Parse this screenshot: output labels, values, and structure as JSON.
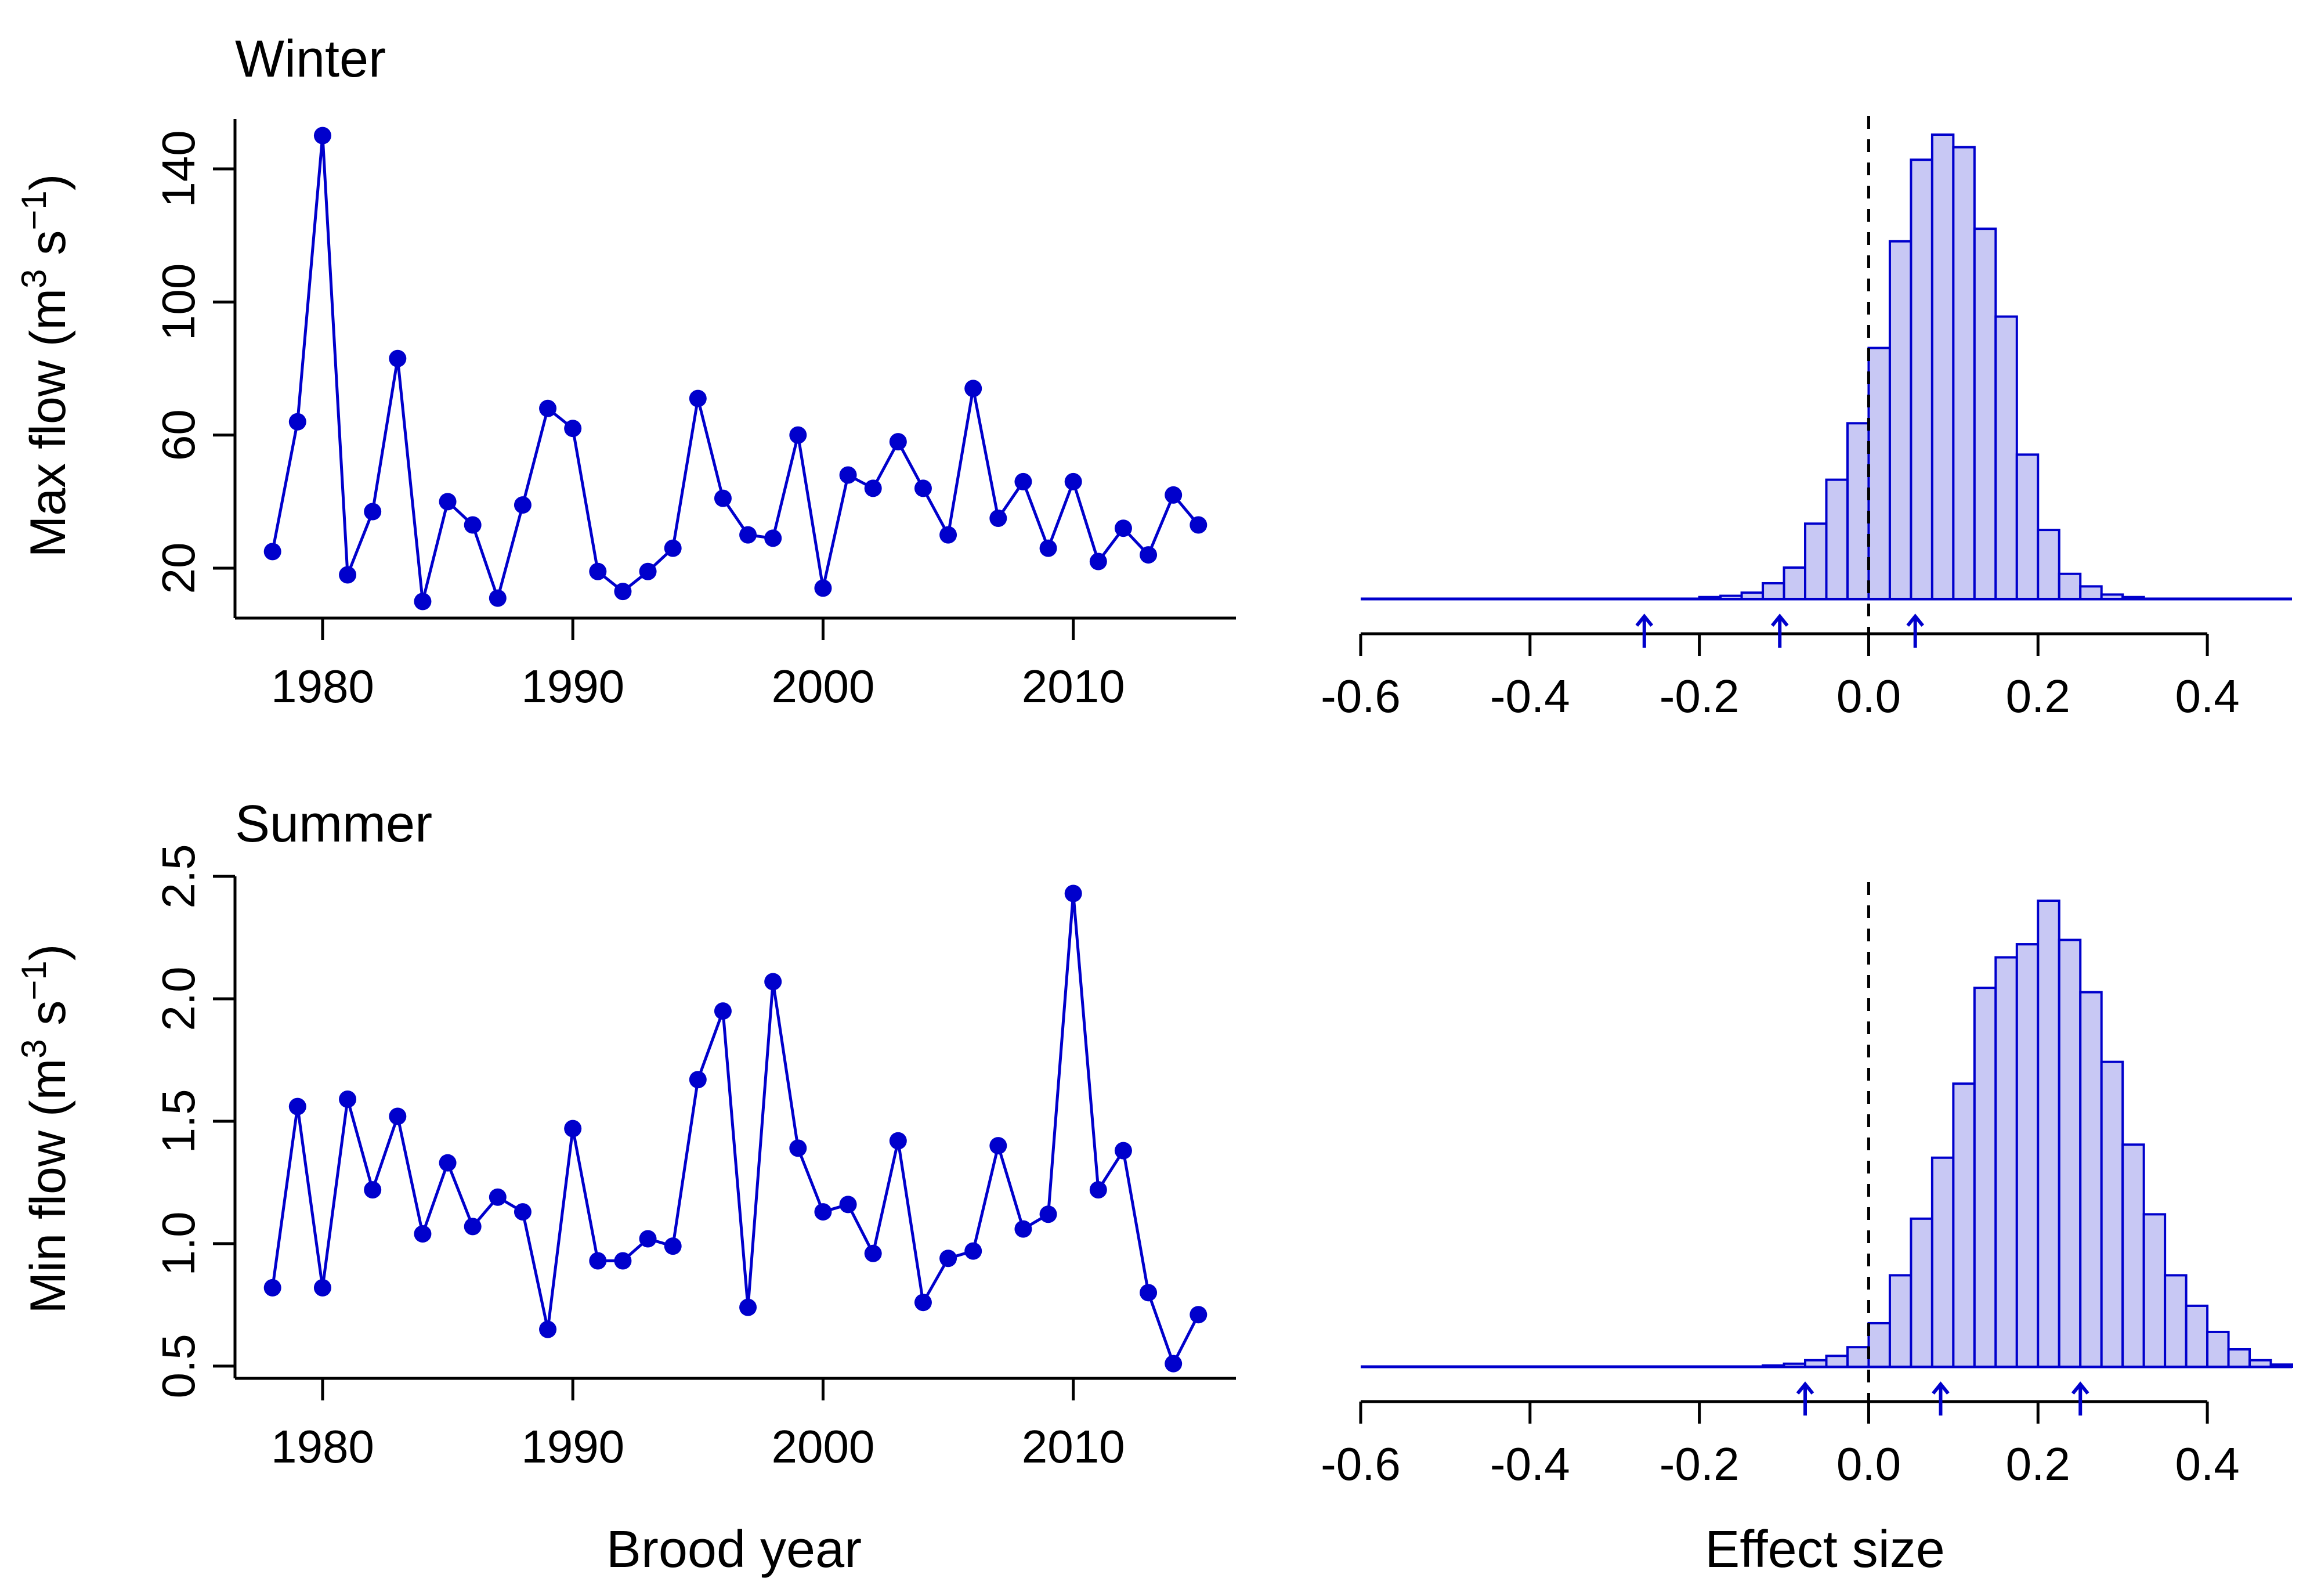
{
  "colors": {
    "series": "#0000cc",
    "bar_fill": "#c8c8f4",
    "axis": "#000000",
    "ref_line": "#000000"
  },
  "labels": {
    "winter_title": "Winter",
    "summer_title": "Summer",
    "max_flow_ylabel": "Max flow (m",
    "min_flow_ylabel": "Min flow (m",
    "unit_sup3": "3",
    "unit_s": " s",
    "unit_sup_minus1": "−1",
    "unit_close": ")",
    "brood_year_xlabel": "Brood year",
    "effect_size_xlabel": "Effect size"
  },
  "chart_data": [
    {
      "type": "line",
      "title": "Winter",
      "xlabel": "",
      "ylabel": "Max flow (m3 s−1)",
      "x": [
        1978,
        1979,
        1980,
        1981,
        1982,
        1983,
        1984,
        1985,
        1986,
        1987,
        1988,
        1989,
        1990,
        1991,
        1992,
        1993,
        1994,
        1995,
        1996,
        1997,
        1998,
        1999,
        2000,
        2001,
        2002,
        2003,
        2004,
        2005,
        2006,
        2007,
        2008,
        2009,
        2010,
        2011,
        2012,
        2013,
        2014,
        2015
      ],
      "y": [
        25,
        64,
        150,
        18,
        37,
        83,
        10,
        40,
        33,
        11,
        39,
        68,
        62,
        19,
        13,
        19,
        26,
        71,
        41,
        30,
        29,
        60,
        14,
        48,
        44,
        58,
        44,
        30,
        74,
        35,
        46,
        26,
        46,
        22,
        32,
        24,
        42,
        33
      ],
      "xlim": [
        1976.5,
        2016.5
      ],
      "ylim": [
        5,
        155
      ],
      "xticks": [
        "1980",
        "1990",
        "2000",
        "2010"
      ],
      "yticks": [
        "20",
        "60",
        "100",
        "140"
      ],
      "marker": "filled circle"
    },
    {
      "type": "bar",
      "subtype": "histogram",
      "xlabel": "",
      "xlim": [
        -0.6,
        0.5
      ],
      "bin_width": 0.025,
      "bin_start": -0.6,
      "counts": [
        0,
        0,
        0,
        0,
        0,
        0,
        0,
        0,
        0,
        0,
        0,
        0,
        0,
        0,
        0,
        0,
        0.3,
        0.5,
        1,
        2.5,
        5,
        12,
        19,
        28,
        40,
        57,
        70,
        74,
        72,
        59,
        45,
        23,
        11,
        4,
        2,
        0.7,
        0.3,
        0,
        0,
        0,
        0,
        0,
        0,
        0,
        0
      ],
      "vline": 0,
      "arrows": [
        -0.265,
        -0.105,
        0.055
      ],
      "xticks": [
        "-0.6",
        "-0.4",
        "-0.2",
        "0.0",
        "0.2",
        "0.4"
      ]
    },
    {
      "type": "line",
      "title": "Summer",
      "xlabel": "Brood year",
      "ylabel": "Min flow (m3 s−1)",
      "x": [
        1978,
        1979,
        1980,
        1981,
        1982,
        1983,
        1984,
        1985,
        1986,
        1987,
        1988,
        1989,
        1990,
        1991,
        1992,
        1993,
        1994,
        1995,
        1996,
        1997,
        1998,
        1999,
        2000,
        2001,
        2002,
        2003,
        2004,
        2005,
        2006,
        2007,
        2008,
        2009,
        2010,
        2011,
        2012,
        2013,
        2014,
        2015
      ],
      "y": [
        0.82,
        1.56,
        0.82,
        1.59,
        1.22,
        1.52,
        1.04,
        1.33,
        1.07,
        1.19,
        1.13,
        0.65,
        1.47,
        0.93,
        0.93,
        1.02,
        0.99,
        1.67,
        1.95,
        0.74,
        2.07,
        1.39,
        1.13,
        1.16,
        0.96,
        1.42,
        0.76,
        0.94,
        0.97,
        1.4,
        1.06,
        1.12,
        2.43,
        1.22,
        1.38,
        0.8,
        0.51,
        0.71
      ],
      "xlim": [
        1976.5,
        2016.5
      ],
      "ylim": [
        0.45,
        2.5
      ],
      "xticks": [
        "1980",
        "1990",
        "2000",
        "2010"
      ],
      "yticks": [
        "0.5",
        "1.0",
        "1.5",
        "2.0",
        "2.5"
      ],
      "marker": "filled circle"
    },
    {
      "type": "bar",
      "subtype": "histogram",
      "xlabel": "Effect size",
      "xlim": [
        -0.6,
        0.5
      ],
      "bin_width": 0.025,
      "bin_start": -0.6,
      "counts": [
        0,
        0,
        0,
        0,
        0,
        0,
        0,
        0,
        0,
        0,
        0,
        0,
        0,
        0,
        0,
        0,
        0,
        0,
        0,
        0.3,
        0.7,
        1.5,
        2.5,
        4.5,
        10,
        21,
        34,
        48,
        65,
        87,
        94,
        97,
        107,
        98,
        86,
        70,
        51,
        35,
        21,
        14,
        8,
        4,
        1.5,
        0.5,
        0
      ],
      "vline": 0,
      "arrows": [
        -0.075,
        0.085,
        0.25
      ],
      "xticks": [
        "-0.6",
        "-0.4",
        "-0.2",
        "0.0",
        "0.2",
        "0.4"
      ]
    }
  ]
}
